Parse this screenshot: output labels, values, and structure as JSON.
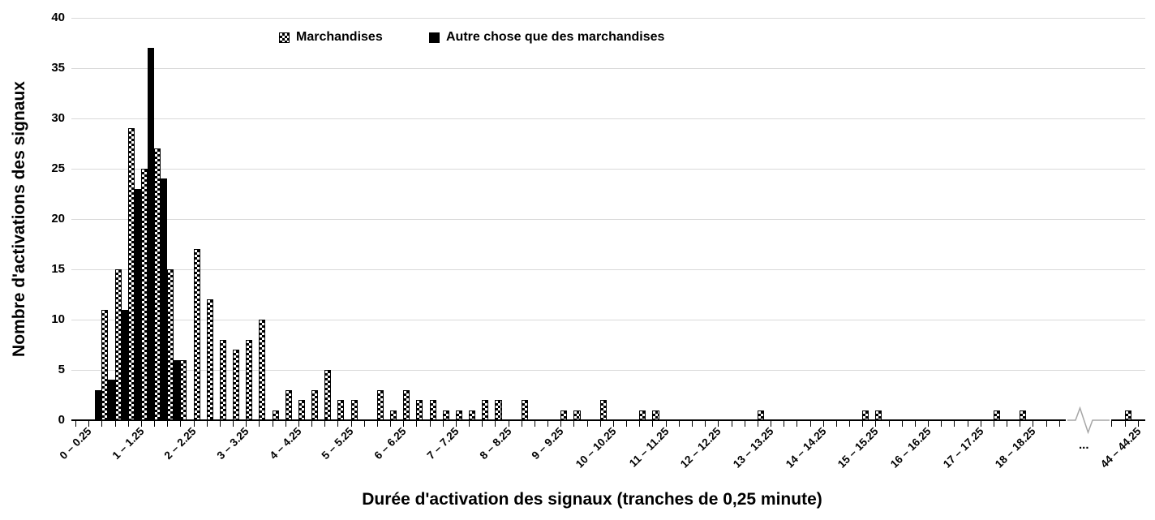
{
  "legend": {
    "items": [
      {
        "label": "Marchandises",
        "swatch": "checker"
      },
      {
        "label": "Autre chose que des marchandises",
        "swatch": "solid"
      }
    ]
  },
  "y_axis": {
    "title": "Nombre d'activations des signaux",
    "tick_labels": [
      "0",
      "5",
      "10",
      "15",
      "20",
      "25",
      "30",
      "35",
      "40"
    ]
  },
  "x_axis": {
    "title": "Durée d'activation des signaux (tranches de 0,25 minute)",
    "major_labels": [
      "0 – 0.25",
      "1 – 1.25",
      "2 – 2.25",
      "3 – 3.25",
      "4 – 4.25",
      "5 – 5.25",
      "6 – 6.25",
      "7 – 7.25",
      "8 – 8.25",
      "9 – 9.25",
      "10 – 10.25",
      "11 – 11.25",
      "12 – 12.25",
      "13 – 13.25",
      "14 – 14.25",
      "15 – 15.25",
      "16 – 16.25",
      "17 – 17.25",
      "18 – 18.25"
    ],
    "break_label": "...",
    "tail_label": "44 – 44.25"
  },
  "chart_data": {
    "type": "bar",
    "title": "",
    "xlabel": "Durée d'activation des signaux (tranches de 0,25 minute)",
    "ylabel": "Nombre d'activations des signaux",
    "ylim": [
      0,
      40
    ],
    "y_step": 5,
    "grid": true,
    "legend_position": "top-center",
    "bin_size_minutes": 0.25,
    "bins_per_major_tick": 4,
    "bin_start_minutes": 0,
    "axis_break": {
      "present": true,
      "after_minutes": 19,
      "break_label": "...",
      "resume_bin_label": "44 – 44.25"
    },
    "series": [
      {
        "name": "Marchandises",
        "style": "checker",
        "values": [
          0,
          0,
          11,
          15,
          29,
          25,
          27,
          15,
          6,
          17,
          12,
          8,
          7,
          8,
          10,
          1,
          3,
          2,
          3,
          5,
          2,
          2,
          0,
          3,
          1,
          3,
          2,
          2,
          1,
          1,
          1,
          2,
          2,
          0,
          2,
          0,
          0,
          1,
          1,
          0,
          2,
          0,
          0,
          1,
          1,
          0,
          0,
          0,
          0,
          0,
          0,
          0,
          1,
          0,
          0,
          0,
          0,
          0,
          0,
          0,
          1,
          1,
          0,
          0,
          0,
          0,
          0,
          0,
          0,
          0,
          1,
          0,
          1,
          0,
          0,
          0
        ],
        "tail_value": 1
      },
      {
        "name": "Autre chose que des marchandises",
        "style": "solid",
        "values": [
          0,
          3,
          4,
          11,
          23,
          37,
          24,
          6,
          0,
          0,
          0,
          0,
          0,
          0,
          0,
          0,
          0,
          0,
          0,
          0,
          0,
          0,
          0,
          0,
          0,
          0,
          0,
          0,
          0,
          0,
          0,
          0,
          0,
          0,
          0,
          0,
          0,
          0,
          0,
          0,
          0,
          0,
          0,
          0,
          0,
          0,
          0,
          0,
          0,
          0,
          0,
          0,
          0,
          0,
          0,
          0,
          0,
          0,
          0,
          0,
          0,
          0,
          0,
          0,
          0,
          0,
          0,
          0,
          0,
          0,
          0,
          0,
          0,
          0,
          0,
          0
        ],
        "tail_value": 0
      }
    ]
  },
  "colors": {
    "bar": "#000000",
    "grid": "#d9d9d9",
    "axis": "#000000",
    "break_line": "#a6a6a6",
    "text": "#000000"
  }
}
